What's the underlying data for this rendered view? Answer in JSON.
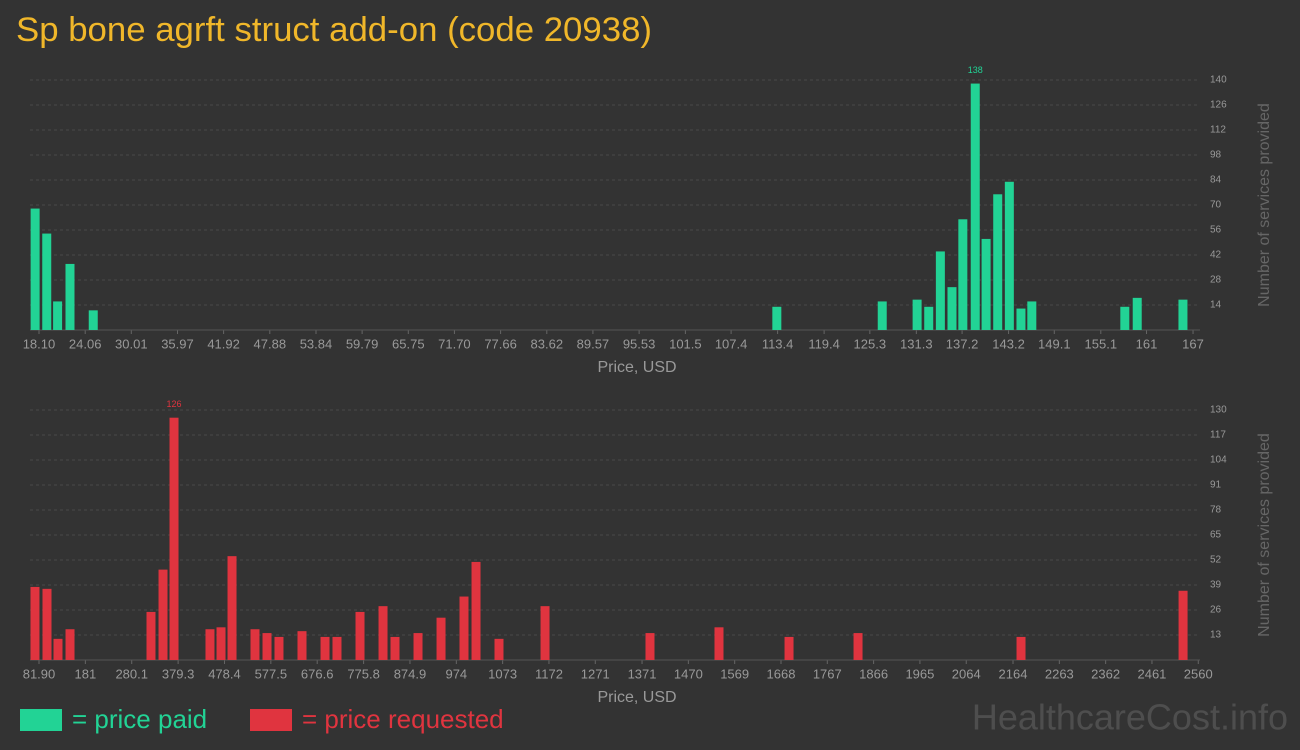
{
  "title": "Sp bone agrft struct add-on (code 20938)",
  "watermark": "HealthcareCost.info",
  "chart_data": [
    {
      "type": "bar",
      "x_label": "Price, USD",
      "y_label": "Number of services provided",
      "xlim": [
        16.94,
        167.9
      ],
      "ylim": [
        0,
        140
      ],
      "xticks": [
        {
          "value": 18.1,
          "label": "18.10"
        },
        24.06,
        30.01,
        35.97,
        41.92,
        47.88,
        53.84,
        59.79,
        65.75,
        {
          "value": 71.7,
          "label": "71.70"
        },
        77.66,
        83.62,
        89.57,
        95.53,
        101.5,
        107.4,
        113.4,
        119.4,
        125.3,
        131.3,
        137.2,
        143.2,
        149.1,
        155.1,
        161,
        167
      ],
      "yticks": [
        14,
        28,
        42,
        56,
        70,
        84,
        98,
        112,
        126,
        140
      ],
      "grid": true,
      "series": [
        {
          "name": "= price paid",
          "color": "#22d395",
          "x": [
            17.6,
            19.1,
            20.5,
            22.1,
            25.1,
            113.3,
            126.9,
            131.4,
            132.9,
            134.4,
            135.9,
            137.3,
            138.9,
            140.3,
            141.8,
            143.3,
            144.8,
            146.2,
            158.2,
            159.8,
            165.7
          ],
          "values": [
            68,
            54,
            16,
            37,
            11,
            13,
            16,
            17,
            13,
            44,
            24,
            62,
            138,
            51,
            76,
            83,
            12,
            16,
            13,
            18,
            17
          ]
        }
      ]
    },
    {
      "type": "bar",
      "x_label": "Price, USD",
      "y_label": "Number of services provided",
      "xlim": [
        62.66,
        2563.7
      ],
      "ylim": [
        0,
        130
      ],
      "xticks": [
        {
          "value": 81.9,
          "label": "81.90"
        },
        181,
        280.1,
        379.3,
        478.4,
        577.5,
        676.6,
        775.8,
        874.9,
        974,
        1073,
        1172,
        1271,
        1371,
        1470,
        1569,
        1668,
        1767,
        1866,
        1965,
        2064,
        2164,
        2263,
        2362,
        2461,
        2560
      ],
      "yticks": [
        13,
        26,
        39,
        52,
        65,
        78,
        91,
        104,
        117,
        130
      ],
      "grid": true,
      "series": [
        {
          "name": "= price requested",
          "color": "#e0343f",
          "x": [
            73.3,
            99,
            122.5,
            148.2,
            321.3,
            347,
            370.5,
            447.4,
            471,
            494.5,
            543.6,
            569.3,
            594.9,
            644.1,
            693.3,
            718.9,
            768.1,
            817.3,
            842.9,
            892.1,
            941.3,
            990.4,
            1016.1,
            1065.2,
            1163.6,
            1388,
            1535.5,
            1685.2,
            1832.7,
            2181.1,
            2527.5
          ],
          "values": [
            38,
            37,
            11,
            16,
            25,
            47,
            126,
            16,
            17,
            54,
            16,
            14,
            12,
            15,
            12,
            12,
            25,
            28,
            12,
            14,
            22,
            33,
            51,
            11,
            28,
            14,
            17,
            12,
            14,
            12,
            36
          ]
        }
      ]
    }
  ]
}
